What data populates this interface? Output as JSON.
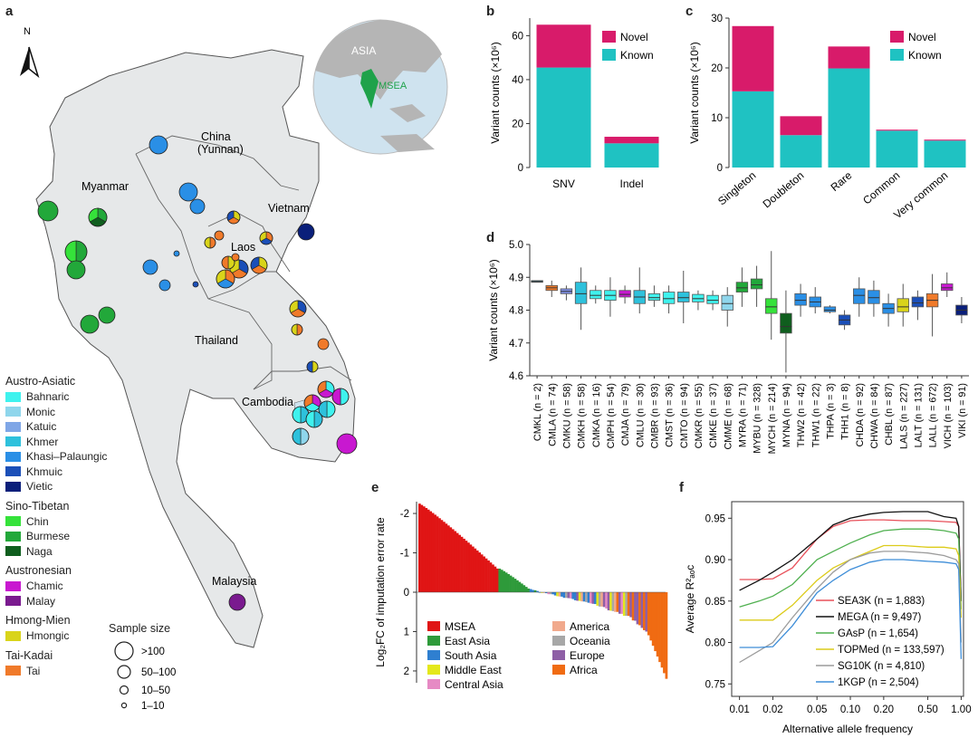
{
  "panels": {
    "a": "a",
    "b": "b",
    "c": "c",
    "d": "d",
    "e": "e",
    "f": "f"
  },
  "map": {
    "north": "N",
    "regions": {
      "china": "China",
      "yunnan": "(Yunnan)",
      "myanmar": "Myanmar",
      "vietnam": "Vietnam",
      "laos": "Laos",
      "thailand": "Thailand",
      "cambodia": "Cambodia",
      "malaysia": "Malaysia"
    },
    "inset": {
      "asia": "ASIA",
      "msea": "MSEA"
    },
    "colors": {
      "land": "#e6e8e9",
      "ocean": "#cfe3ef",
      "globe_land": "#b5b5b5",
      "msea": "#1fa24a"
    }
  },
  "legend": {
    "groups": [
      {
        "title": "Austro-Asiatic",
        "items": [
          {
            "label": "Bahnaric",
            "color": "#3ff2ee"
          },
          {
            "label": "Monic",
            "color": "#8fd6ec"
          },
          {
            "label": "Katuic",
            "color": "#7fa6e6"
          },
          {
            "label": "Khmer",
            "color": "#2ec1dc"
          },
          {
            "label": "Khasi–Palaungic",
            "color": "#2a8fe6"
          },
          {
            "label": "Khmuic",
            "color": "#1b4fb8"
          },
          {
            "label": "Vietic",
            "color": "#0a1f7a"
          }
        ]
      },
      {
        "title": "Sino-Tibetan",
        "items": [
          {
            "label": "Chin",
            "color": "#35e23a"
          },
          {
            "label": "Burmese",
            "color": "#22a83a"
          },
          {
            "label": "Naga",
            "color": "#0f5e1e"
          }
        ]
      },
      {
        "title": "Austronesian",
        "items": [
          {
            "label": "Chamic",
            "color": "#c818d0"
          },
          {
            "label": "Malay",
            "color": "#7a1a8f"
          }
        ]
      },
      {
        "title": "Hmong-Mien",
        "items": [
          {
            "label": "Hmongic",
            "color": "#d9d41a"
          }
        ]
      },
      {
        "title": "Tai-Kadai",
        "items": [
          {
            "label": "Tai",
            "color": "#f07a2a"
          }
        ]
      }
    ],
    "sample_size": {
      "title": "Sample size",
      "labels": [
        ">100",
        "50–100",
        "10–50",
        "1–10"
      ]
    }
  },
  "chart_data": [
    {
      "panel": "b",
      "type": "bar",
      "stacked": true,
      "categories": [
        "SNV",
        "Indel"
      ],
      "series": [
        {
          "name": "Known",
          "values": [
            45.5,
            11
          ],
          "color": "#1fc2c2"
        },
        {
          "name": "Novel",
          "values": [
            19.5,
            3
          ],
          "color": "#d81b6a"
        }
      ],
      "ylabel": "Variant counts (×10⁶)",
      "ylim": [
        0,
        68
      ],
      "yticks": [
        "0",
        "20",
        "40",
        "60"
      ]
    },
    {
      "panel": "c",
      "type": "bar",
      "stacked": true,
      "categories": [
        "Singleton",
        "Doubleton",
        "Rare",
        "Common",
        "Very common"
      ],
      "series": [
        {
          "name": "Known",
          "values": [
            15.3,
            6.5,
            19.9,
            7.4,
            5.4
          ],
          "color": "#1fc2c2"
        },
        {
          "name": "Novel",
          "values": [
            13.1,
            3.8,
            4.4,
            0.2,
            0.2
          ],
          "color": "#d81b6a"
        }
      ],
      "ylabel": "Variant counts (×10⁶)",
      "ylim": [
        0,
        30
      ],
      "yticks": [
        "0",
        "10",
        "20",
        "30"
      ]
    },
    {
      "panel": "d",
      "type": "box",
      "ylabel": "Variant counts (×10⁶)",
      "ylim": [
        4.6,
        5.0
      ],
      "yticks": [
        "4.6",
        "4.7",
        "4.8",
        "4.9",
        "5.0"
      ],
      "groups": [
        {
          "label": "CMKL (n = 2)",
          "color": "#2a8a9a",
          "q1": 4.885,
          "med": 4.887,
          "q3": 4.89,
          "lo": 4.885,
          "hi": 4.89
        },
        {
          "label": "CMLA (n = 74)",
          "color": "#f07a2a",
          "q1": 4.86,
          "med": 4.868,
          "q3": 4.875,
          "lo": 4.84,
          "hi": 4.89
        },
        {
          "label": "CMKU (n = 58)",
          "color": "#7f8fe6",
          "q1": 4.85,
          "med": 4.857,
          "q3": 4.865,
          "lo": 4.83,
          "hi": 4.875
        },
        {
          "label": "CMKH (n = 58)",
          "color": "#2ec1dc",
          "q1": 4.82,
          "med": 4.85,
          "q3": 4.885,
          "lo": 4.74,
          "hi": 4.93
        },
        {
          "label": "CMKA (n = 16)",
          "color": "#3ff2ee",
          "q1": 4.835,
          "med": 4.845,
          "q3": 4.86,
          "lo": 4.82,
          "hi": 4.875
        },
        {
          "label": "CMPH (n = 54)",
          "color": "#3ff2ee",
          "q1": 4.83,
          "med": 4.845,
          "q3": 4.86,
          "lo": 4.78,
          "hi": 4.9
        },
        {
          "label": "CMJA (n = 79)",
          "color": "#c818d0",
          "q1": 4.84,
          "med": 4.848,
          "q3": 4.86,
          "lo": 4.82,
          "hi": 4.875
        },
        {
          "label": "CMLU (n = 30)",
          "color": "#2ec1dc",
          "q1": 4.82,
          "med": 4.84,
          "q3": 4.86,
          "lo": 4.79,
          "hi": 4.93
        },
        {
          "label": "CMBR (n = 93)",
          "color": "#3ff2ee",
          "q1": 4.83,
          "med": 4.838,
          "q3": 4.85,
          "lo": 4.81,
          "hi": 4.875
        },
        {
          "label": "CMST (n = 36)",
          "color": "#3ff2ee",
          "q1": 4.82,
          "med": 4.835,
          "q3": 4.855,
          "lo": 4.79,
          "hi": 4.875
        },
        {
          "label": "CMTO (n = 94)",
          "color": "#2ec1dc",
          "q1": 4.825,
          "med": 4.838,
          "q3": 4.855,
          "lo": 4.76,
          "hi": 4.92
        },
        {
          "label": "CMKR (n = 55)",
          "color": "#3ff2ee",
          "q1": 4.825,
          "med": 4.835,
          "q3": 4.848,
          "lo": 4.8,
          "hi": 4.86
        },
        {
          "label": "CMKE (n = 37)",
          "color": "#3ff2ee",
          "q1": 4.82,
          "med": 4.83,
          "q3": 4.845,
          "lo": 4.8,
          "hi": 4.86
        },
        {
          "label": "CMME (n = 68)",
          "color": "#8fd6ec",
          "q1": 4.8,
          "med": 4.82,
          "q3": 4.845,
          "lo": 4.75,
          "hi": 4.87
        },
        {
          "label": "MYRA (n = 71)",
          "color": "#22a83a",
          "q1": 4.855,
          "med": 4.868,
          "q3": 4.885,
          "lo": 4.81,
          "hi": 4.93
        },
        {
          "label": "MYBU (n = 328)",
          "color": "#22a83a",
          "q1": 4.865,
          "med": 4.877,
          "q3": 4.895,
          "lo": 4.81,
          "hi": 4.935
        },
        {
          "label": "MYCH (n = 214)",
          "color": "#35e23a",
          "q1": 4.79,
          "med": 4.81,
          "q3": 4.835,
          "lo": 4.71,
          "hi": 4.98
        },
        {
          "label": "MYNA (n = 94)",
          "color": "#0f5e1e",
          "q1": 4.73,
          "med": 4.75,
          "q3": 4.79,
          "lo": 4.61,
          "hi": 4.86
        },
        {
          "label": "THW2 (n = 42)",
          "color": "#2a8fe6",
          "q1": 4.815,
          "med": 4.83,
          "q3": 4.85,
          "lo": 4.78,
          "hi": 4.88
        },
        {
          "label": "THW1 (n = 22)",
          "color": "#2a8fe6",
          "q1": 4.81,
          "med": 4.825,
          "q3": 4.84,
          "lo": 4.79,
          "hi": 4.87
        },
        {
          "label": "THPA (n = 3)",
          "color": "#2a8fe6",
          "q1": 4.795,
          "med": 4.8,
          "q3": 4.81,
          "lo": 4.79,
          "hi": 4.815
        },
        {
          "label": "THH1 (n = 8)",
          "color": "#1b4fb8",
          "q1": 4.755,
          "med": 4.77,
          "q3": 4.785,
          "lo": 4.74,
          "hi": 4.8
        },
        {
          "label": "CHDA (n = 92)",
          "color": "#2a8fe6",
          "q1": 4.82,
          "med": 4.845,
          "q3": 4.865,
          "lo": 4.78,
          "hi": 4.9
        },
        {
          "label": "CHWA (n = 84)",
          "color": "#2a8fe6",
          "q1": 4.82,
          "med": 4.838,
          "q3": 4.86,
          "lo": 4.78,
          "hi": 4.89
        },
        {
          "label": "CHBL (n = 87)",
          "color": "#2a8fe6",
          "q1": 4.79,
          "med": 4.805,
          "q3": 4.82,
          "lo": 4.75,
          "hi": 4.85
        },
        {
          "label": "LALS (n = 227)",
          "color": "#d9d41a",
          "q1": 4.795,
          "med": 4.81,
          "q3": 4.835,
          "lo": 4.75,
          "hi": 4.88
        },
        {
          "label": "LALT (n = 131)",
          "color": "#1b4fb8",
          "q1": 4.81,
          "med": 4.822,
          "q3": 4.84,
          "lo": 4.77,
          "hi": 4.86
        },
        {
          "label": "LALL (n = 672)",
          "color": "#f07a2a",
          "q1": 4.81,
          "med": 4.83,
          "q3": 4.85,
          "lo": 4.72,
          "hi": 4.91
        },
        {
          "label": "VICH (n = 103)",
          "color": "#c818d0",
          "q1": 4.86,
          "med": 4.868,
          "q3": 4.88,
          "lo": 4.84,
          "hi": 4.915
        },
        {
          "label": "VIKI (n = 91)",
          "color": "#0a1f7a",
          "q1": 4.785,
          "med": 4.8,
          "q3": 4.815,
          "lo": 4.76,
          "hi": 4.84
        }
      ]
    },
    {
      "panel": "e",
      "type": "bar",
      "ylabel": "Log₂FC of imputation error rate",
      "ylim": [
        -2.3,
        2.3
      ],
      "yticks": [
        "-2",
        "-1",
        "0",
        "1",
        "2"
      ],
      "legend": [
        {
          "name": "MSEA",
          "color": "#e01515"
        },
        {
          "name": "East Asia",
          "color": "#2e9a3a"
        },
        {
          "name": "South Asia",
          "color": "#2f7fd0"
        },
        {
          "name": "Middle East",
          "color": "#e4e81c"
        },
        {
          "name": "Central Asia",
          "color": "#e68ac4"
        },
        {
          "name": "America",
          "color": "#f1a98c"
        },
        {
          "name": "Oceania",
          "color": "#a7a7a7"
        },
        {
          "name": "Europe",
          "color": "#8e5fa6"
        },
        {
          "name": "Africa",
          "color": "#f06b12"
        }
      ],
      "region_counts": [
        36,
        15,
        14,
        6,
        5,
        5,
        6,
        11,
        14
      ],
      "region_ranges": [
        [
          -2.25,
          -0.6
        ],
        [
          -0.6,
          -0.05
        ],
        [
          -0.08,
          0.3
        ],
        [
          0.0,
          0.6
        ],
        [
          0.05,
          0.55
        ],
        [
          0.0,
          0.5
        ],
        [
          0.05,
          0.6
        ],
        [
          0.15,
          1.0
        ],
        [
          0.5,
          2.2
        ]
      ]
    },
    {
      "panel": "f",
      "type": "line",
      "xlabel": "Alternative allele frequency",
      "ylabel": "Average R²ₐₒc",
      "xscale": "log",
      "xticks": [
        "0.01",
        "0.02",
        "0.05",
        "0.10",
        "0.20",
        "0.50",
        "1.00"
      ],
      "yticks": [
        "0.75",
        "0.80",
        "0.85",
        "0.90",
        "0.95"
      ],
      "ylim": [
        0.735,
        0.97
      ],
      "x": [
        0.01,
        0.015,
        0.02,
        0.03,
        0.05,
        0.07,
        0.1,
        0.15,
        0.2,
        0.3,
        0.5,
        0.7,
        0.9,
        0.95,
        1.0
      ],
      "series": [
        {
          "name": "SEA3K (n = 1,883)",
          "color": "#e8505a",
          "values": [
            0.876,
            0.876,
            0.877,
            0.89,
            0.925,
            0.94,
            0.947,
            0.948,
            0.948,
            0.947,
            0.947,
            0.946,
            0.945,
            0.94,
            0.85
          ]
        },
        {
          "name": "MEGA (n = 9,497)",
          "color": "#111111",
          "values": [
            0.863,
            0.875,
            0.885,
            0.9,
            0.925,
            0.942,
            0.95,
            0.955,
            0.957,
            0.958,
            0.958,
            0.952,
            0.95,
            0.94,
            0.85
          ]
        },
        {
          "name": "GAsP (n = 1,654)",
          "color": "#4fb04f",
          "values": [
            0.843,
            0.85,
            0.856,
            0.87,
            0.9,
            0.91,
            0.92,
            0.93,
            0.935,
            0.937,
            0.937,
            0.935,
            0.932,
            0.925,
            0.84
          ]
        },
        {
          "name": "TOPMed (n = 133,597)",
          "color": "#dccb1a",
          "values": [
            0.827,
            0.827,
            0.827,
            0.845,
            0.875,
            0.89,
            0.9,
            0.91,
            0.917,
            0.917,
            0.915,
            0.915,
            0.913,
            0.905,
            0.83
          ]
        },
        {
          "name": "SG10K (n = 4,810)",
          "color": "#9c9c9c",
          "values": [
            0.776,
            0.79,
            0.8,
            0.83,
            0.865,
            0.885,
            0.9,
            0.908,
            0.91,
            0.91,
            0.908,
            0.905,
            0.9,
            0.895,
            0.8
          ]
        },
        {
          "name": "1KGP (n = 2,504)",
          "color": "#3f8ed8",
          "values": [
            0.794,
            0.794,
            0.795,
            0.82,
            0.86,
            0.875,
            0.888,
            0.897,
            0.9,
            0.9,
            0.898,
            0.897,
            0.895,
            0.888,
            0.78
          ]
        }
      ]
    }
  ]
}
